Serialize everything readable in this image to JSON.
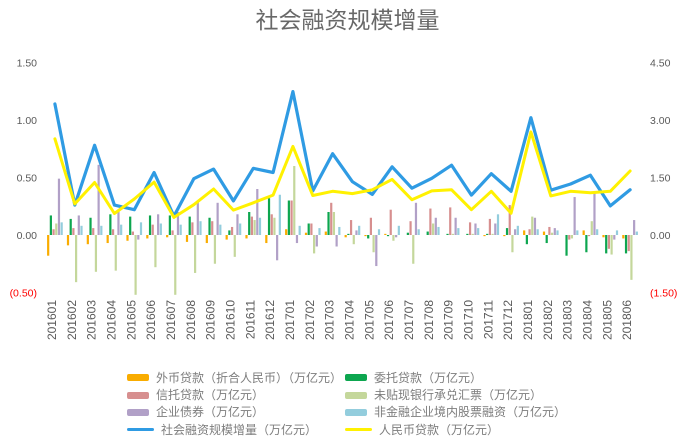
{
  "title": "社会融资规模增量",
  "chart_data": {
    "type": "bar+line",
    "grid": false,
    "legend_position": "bottom",
    "axis_label_color": "#595959",
    "negative_label_color": "#FF0000",
    "categories": [
      "201601",
      "201602",
      "201603",
      "201604",
      "201605",
      "201606",
      "201607",
      "201608",
      "201609",
      "201610",
      "201611",
      "201612",
      "201701",
      "201702",
      "201703",
      "201704",
      "201705",
      "201706",
      "201707",
      "201708",
      "201709",
      "201710",
      "201711",
      "201712",
      "201801",
      "201802",
      "201803",
      "201804",
      "201805",
      "201806"
    ],
    "left_axis": {
      "range": [
        -0.5,
        1.5
      ],
      "ticks": [
        {
          "value": 1.5,
          "label": "1.50"
        },
        {
          "value": 1.0,
          "label": "1.00"
        },
        {
          "value": 0.5,
          "label": "0.50"
        },
        {
          "value": 0.0,
          "label": "0.00"
        },
        {
          "value": -0.5,
          "label": "(0.50)"
        }
      ]
    },
    "right_axis": {
      "range": [
        -1.5,
        4.5
      ],
      "ticks": [
        {
          "value": 4.5,
          "label": "4.50"
        },
        {
          "value": 3.0,
          "label": "3.00"
        },
        {
          "value": 1.5,
          "label": "1.50"
        },
        {
          "value": 0.0,
          "label": "0.00"
        },
        {
          "value": -1.5,
          "label": "(1.50)"
        }
      ]
    },
    "bar_series": [
      {
        "key": "fx",
        "name": "外币贷款（折合人民币）（万亿元）",
        "color": "#F9AC00",
        "axis": "left",
        "values": [
          -0.18,
          -0.09,
          -0.08,
          -0.07,
          -0.05,
          -0.03,
          -0.02,
          -0.06,
          -0.07,
          -0.04,
          -0.03,
          -0.07,
          0.05,
          0.02,
          0.03,
          -0.02,
          -0.01,
          0.01,
          0.0,
          0.0,
          0.0,
          0.0,
          -0.01,
          -0.01,
          0.04,
          0.03,
          0.0,
          0.04,
          -0.02,
          -0.03
        ]
      },
      {
        "key": "entrust",
        "name": "委托贷款（万亿元）",
        "color": "#0DA64F",
        "axis": "left",
        "values": [
          0.17,
          0.14,
          0.15,
          0.18,
          0.16,
          0.17,
          0.17,
          0.16,
          0.15,
          0.04,
          0.2,
          0.32,
          0.3,
          0.1,
          0.2,
          0.01,
          -0.03,
          -0.01,
          0.02,
          0.03,
          0.01,
          0.01,
          0.01,
          0.06,
          -0.08,
          -0.07,
          -0.18,
          -0.15,
          -0.16,
          -0.16
        ]
      },
      {
        "key": "trust",
        "name": "信托贷款（万亿元）",
        "color": "#D78F8F",
        "axis": "left",
        "values": [
          0.05,
          0.06,
          0.06,
          0.05,
          0.03,
          0.09,
          0.04,
          0.11,
          0.12,
          0.07,
          0.16,
          0.18,
          0.3,
          0.1,
          0.28,
          0.13,
          0.15,
          0.22,
          0.12,
          0.23,
          0.24,
          0.11,
          0.14,
          0.26,
          0.05,
          0.07,
          -0.04,
          -0.01,
          -0.12,
          -0.14
        ]
      },
      {
        "key": "bill",
        "name": "未贴现银行承兑汇票（万亿元）",
        "color": "#C4D79B",
        "axis": "left",
        "values": [
          0.1,
          -0.41,
          -0.32,
          -0.31,
          -0.52,
          -0.28,
          -0.52,
          -0.33,
          -0.25,
          -0.19,
          0.13,
          0.15,
          0.6,
          -0.16,
          0.2,
          -0.08,
          -0.15,
          -0.05,
          -0.25,
          0.1,
          0.01,
          0.01,
          0.01,
          -0.15,
          0.16,
          0.02,
          -0.03,
          0.12,
          -0.17,
          -0.39
        ]
      },
      {
        "key": "bond",
        "name": "企业债券（万亿元）",
        "color": "#B1A0C7",
        "axis": "left",
        "values": [
          0.49,
          0.17,
          0.61,
          0.21,
          -0.04,
          0.18,
          0.2,
          0.3,
          0.28,
          0.18,
          0.4,
          -0.22,
          -0.07,
          -0.1,
          -0.1,
          0.04,
          -0.27,
          -0.02,
          0.28,
          0.15,
          0.15,
          0.1,
          0.1,
          0.05,
          0.15,
          0.06,
          0.33,
          0.38,
          -0.04,
          0.13
        ]
      },
      {
        "key": "equity",
        "name": "非金融企业境内股票融资（万亿元）",
        "color": "#93CDDD",
        "axis": "left",
        "values": [
          0.11,
          0.08,
          0.08,
          0.09,
          0.11,
          0.1,
          0.09,
          0.12,
          0.09,
          0.1,
          0.15,
          0.35,
          0.08,
          0.06,
          0.07,
          0.08,
          0.05,
          0.08,
          0.05,
          0.07,
          0.06,
          0.06,
          0.18,
          0.08,
          0.05,
          0.04,
          0.04,
          0.05,
          0.04,
          0.03
        ]
      }
    ],
    "line_series": [
      {
        "key": "tsf",
        "name": "社会融资规模增量（万亿元）",
        "color": "#2F9BE3",
        "axis": "right",
        "width": 3.2,
        "values": [
          3.42,
          0.78,
          2.34,
          0.78,
          0.66,
          1.63,
          0.49,
          1.47,
          1.72,
          0.89,
          1.74,
          1.63,
          3.74,
          1.15,
          2.12,
          1.39,
          1.06,
          1.78,
          1.22,
          1.48,
          1.82,
          1.04,
          1.6,
          1.14,
          3.06,
          1.17,
          1.33,
          1.56,
          0.76,
          1.18
        ]
      },
      {
        "key": "loan",
        "name": "人民币贷款（万亿元）",
        "color": "#FFF101",
        "axis": "right",
        "width": 3,
        "values": [
          2.51,
          0.81,
          1.37,
          0.56,
          0.94,
          1.38,
          0.46,
          0.79,
          1.2,
          0.65,
          0.84,
          1.04,
          2.31,
          1.03,
          1.14,
          1.08,
          1.18,
          1.45,
          0.92,
          1.15,
          1.18,
          0.66,
          1.14,
          0.57,
          2.69,
          1.02,
          1.14,
          1.1,
          1.14,
          1.67
        ]
      }
    ]
  },
  "legend": {
    "items": [
      {
        "label": "外币贷款（折合人民币）（万亿元）",
        "swatch": "bar",
        "color": "#F9AC00"
      },
      {
        "label": "委托贷款（万亿元）",
        "swatch": "bar",
        "color": "#0DA64F"
      },
      {
        "label": "信托贷款（万亿元）",
        "swatch": "bar",
        "color": "#D78F8F"
      },
      {
        "label": "未贴现银行承兑汇票（万亿元）",
        "swatch": "bar",
        "color": "#C4D79B"
      },
      {
        "label": "企业债券（万亿元）",
        "swatch": "bar",
        "color": "#B1A0C7"
      },
      {
        "label": "非金融企业境内股票融资（万亿元）",
        "swatch": "bar",
        "color": "#93CDDD"
      },
      {
        "label": "社会融资规模增量（万亿元）",
        "swatch": "line",
        "color": "#2F9BE3"
      },
      {
        "label": "人民币贷款（万亿元）",
        "swatch": "line",
        "color": "#FFF101"
      }
    ]
  }
}
